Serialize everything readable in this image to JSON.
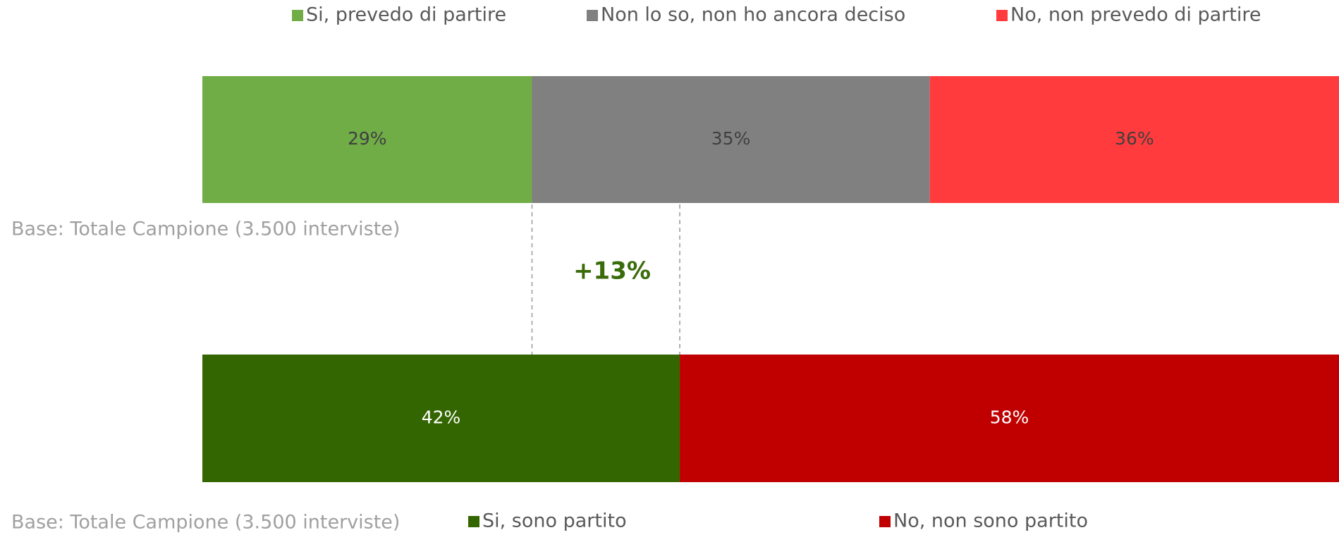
{
  "chart_data": [
    {
      "type": "stacked-bar",
      "orientation": "horizontal",
      "xlim": [
        0,
        100
      ],
      "series": [
        {
          "name": "Si, prevedo di partire",
          "color": "#70ad47",
          "values": [
            29
          ],
          "value_labels": [
            "29%"
          ]
        },
        {
          "name": "Non lo so, non ho ancora deciso",
          "color": "#808080",
          "values": [
            35
          ],
          "value_labels": [
            "35%"
          ]
        },
        {
          "name": "No, non prevedo di partire",
          "color": "#ff3b3d",
          "values": [
            36
          ],
          "value_labels": [
            "36%"
          ]
        }
      ],
      "note": "Base: Totale Campione (3.500 interviste)"
    },
    {
      "type": "stacked-bar",
      "orientation": "horizontal",
      "xlim": [
        0,
        100
      ],
      "series": [
        {
          "name": "Si, sono partito",
          "color": "#336600",
          "values": [
            42
          ],
          "value_labels": [
            "42%"
          ]
        },
        {
          "name": "No, non sono partito",
          "color": "#c00000",
          "values": [
            58
          ],
          "value_labels": [
            "58%"
          ]
        }
      ],
      "note": "Base: Totale Campione (3.500 interviste)"
    }
  ],
  "annotation": "+13%"
}
